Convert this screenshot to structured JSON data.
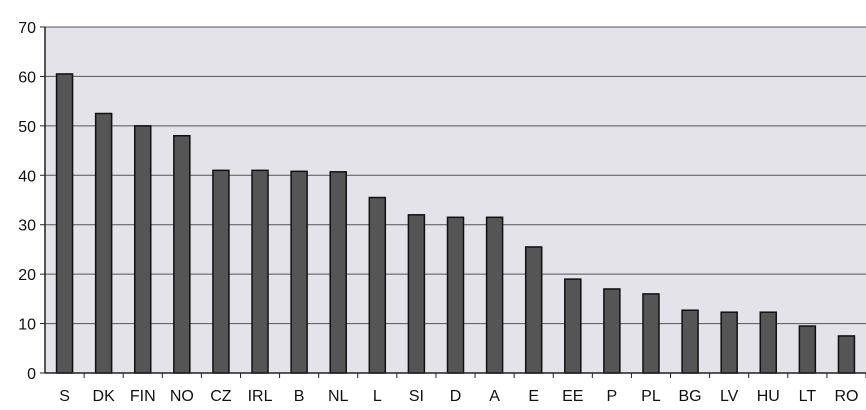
{
  "chart_data": {
    "type": "bar",
    "title": "",
    "xlabel": "",
    "ylabel": "",
    "categories": [
      "S",
      "DK",
      "FIN",
      "NO",
      "CZ",
      "IRL",
      "B",
      "NL",
      "L",
      "SI",
      "D",
      "A",
      "E",
      "EE",
      "P",
      "PL",
      "BG",
      "LV",
      "HU",
      "LT",
      "RO"
    ],
    "values": [
      60.5,
      52.5,
      50,
      48,
      41,
      41,
      40.8,
      40.7,
      35.5,
      32,
      31.5,
      31.5,
      25.5,
      19,
      17,
      16,
      12.7,
      12.3,
      12.3,
      9.5,
      7.5
    ],
    "ylim": [
      0,
      70
    ],
    "yticks": [
      0,
      10,
      20,
      30,
      40,
      50,
      60,
      70
    ],
    "grid": true,
    "legend": "none",
    "colors": {
      "plot_background": "#e3e3e9",
      "bar_fill": "#555555",
      "bar_stroke": "#111111",
      "gridline": "#555555",
      "axis": "#222222"
    }
  }
}
